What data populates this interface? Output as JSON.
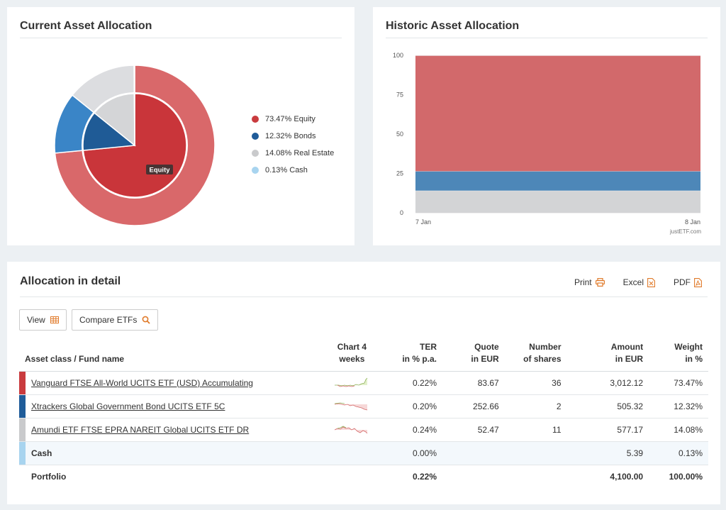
{
  "current": {
    "title": "Current Asset Allocation",
    "center_label": "Equity",
    "legend": [
      {
        "label": "73.47% Equity",
        "color": "#c93b3e"
      },
      {
        "label": "12.32% Bonds",
        "color": "#1f5c99"
      },
      {
        "label": "14.08% Real Estate",
        "color": "#c9cacc"
      },
      {
        "label": "0.13% Cash",
        "color": "#a8d4ef"
      }
    ],
    "chart_data": {
      "type": "pie",
      "categories": [
        "Equity",
        "Bonds",
        "Real Estate",
        "Cash"
      ],
      "values": [
        73.47,
        12.32,
        14.08,
        0.13
      ],
      "colors_inner": [
        "#c9353a",
        "#1f5b96",
        "#d4d5d7",
        "#a8d4ef"
      ],
      "colors_outer": [
        "#d9686a",
        "#3a85c7",
        "#dcdde0",
        "#bfe0f4"
      ]
    }
  },
  "historic": {
    "title": "Historic Asset Allocation",
    "credit": "justETF.com",
    "chart_data": {
      "type": "area",
      "x": [
        "7 Jan",
        "8 Jan"
      ],
      "y_ticks": [
        0,
        25,
        50,
        75,
        100
      ],
      "ylim": [
        0,
        100
      ],
      "stacking": "percent",
      "series": [
        {
          "name": "Real Estate",
          "values": [
            14.08,
            14.08
          ],
          "color": "#d3d4d6"
        },
        {
          "name": "Bonds",
          "values": [
            12.32,
            12.32
          ],
          "color": "#4d87b8"
        },
        {
          "name": "Equity",
          "values": [
            73.47,
            73.47
          ],
          "color": "#d2696b"
        },
        {
          "name": "Cash",
          "values": [
            0.13,
            0.13
          ],
          "color": "#a9d1ec"
        }
      ]
    }
  },
  "detail": {
    "title": "Allocation in detail",
    "print_label": "Print",
    "excel_label": "Excel",
    "pdf_label": "PDF",
    "view_label": "View",
    "compare_label": "Compare ETFs",
    "headers": {
      "asset": "Asset class / Fund name",
      "chart_1": "Chart 4",
      "chart_2": "weeks",
      "ter_1": "TER",
      "ter_2": "in % p.a.",
      "quote_1": "Quote",
      "quote_2": "in EUR",
      "shares_1": "Number",
      "shares_2": "of shares",
      "amount_1": "Amount",
      "amount_2": "in EUR",
      "weight_1": "Weight",
      "weight_2": "in %"
    },
    "rows": [
      {
        "name": "Vanguard FTSE All-World UCITS ETF (USD) Accumulating",
        "ter": "0.22%",
        "quote": "83.67",
        "shares": "36",
        "amount": "3,012.12",
        "weight": "73.47%",
        "color": "#c93b3e"
      },
      {
        "name": "Xtrackers Global Government Bond UCITS ETF 5C",
        "ter": "0.20%",
        "quote": "252.66",
        "shares": "2",
        "amount": "505.32",
        "weight": "12.32%",
        "color": "#1f5c99"
      },
      {
        "name": "Amundi ETF FTSE EPRA NAREIT Global UCITS ETF DR",
        "ter": "0.24%",
        "quote": "52.47",
        "shares": "11",
        "amount": "577.17",
        "weight": "14.08%",
        "color": "#c9cacc"
      },
      {
        "name": "Cash",
        "ter": "0.00%",
        "quote": "",
        "shares": "",
        "amount": "5.39",
        "weight": "0.13%",
        "color": "#a8d4ef"
      }
    ],
    "total": {
      "name": "Portfolio",
      "ter": "0.22%",
      "amount": "4,100.00",
      "weight": "100.00%"
    }
  }
}
